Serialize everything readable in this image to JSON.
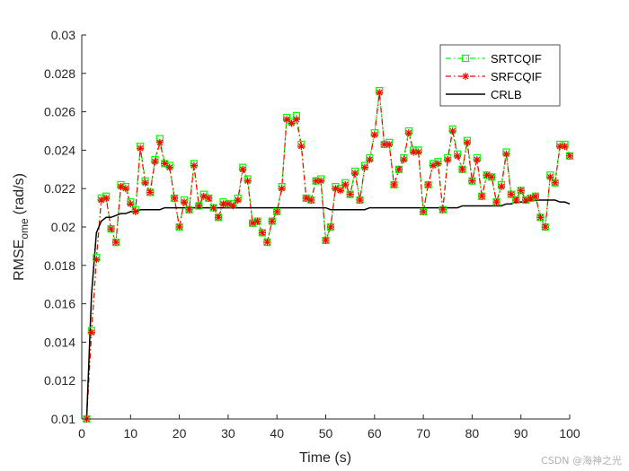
{
  "chart_data": {
    "type": "line",
    "title": "",
    "xlabel": "Time (s)",
    "ylabel_main": "RMSE",
    "ylabel_sub": "ome",
    "ylabel_unit": "(rad/s)",
    "xlim": [
      0,
      100
    ],
    "ylim": [
      0.01,
      0.03
    ],
    "xticks": [
      "0",
      "10",
      "20",
      "30",
      "40",
      "50",
      "60",
      "70",
      "80",
      "90",
      "100"
    ],
    "yticks": [
      "0.01",
      "0.012",
      "0.014",
      "0.016",
      "0.018",
      "0.02",
      "0.022",
      "0.024",
      "0.026",
      "0.028",
      "0.03"
    ],
    "legend_position": "top-right",
    "x": [
      1,
      2,
      3,
      4,
      5,
      6,
      7,
      8,
      9,
      10,
      11,
      12,
      13,
      14,
      15,
      16,
      17,
      18,
      19,
      20,
      21,
      22,
      23,
      24,
      25,
      26,
      27,
      28,
      29,
      30,
      31,
      32,
      33,
      34,
      35,
      36,
      37,
      38,
      39,
      40,
      41,
      42,
      43,
      44,
      45,
      46,
      47,
      48,
      49,
      50,
      51,
      52,
      53,
      54,
      55,
      56,
      57,
      58,
      59,
      60,
      61,
      62,
      63,
      64,
      65,
      66,
      67,
      68,
      69,
      70,
      71,
      72,
      73,
      74,
      75,
      76,
      77,
      78,
      79,
      80,
      81,
      82,
      83,
      84,
      85,
      86,
      87,
      88,
      89,
      90,
      91,
      92,
      93,
      94,
      95,
      96,
      97,
      98,
      99,
      100
    ],
    "series": [
      {
        "name": "SRTCQIF",
        "color": "#00ff00",
        "style": "dash-dot",
        "marker": "square",
        "values": [
          0.01,
          0.0146,
          0.0184,
          0.0215,
          0.0216,
          0.0199,
          0.0192,
          0.0222,
          0.0221,
          0.0213,
          0.0209,
          0.0242,
          0.0224,
          0.0218,
          0.0235,
          0.0246,
          0.0233,
          0.0232,
          0.0215,
          0.02,
          0.0214,
          0.0209,
          0.0233,
          0.0211,
          0.0217,
          0.0215,
          0.021,
          0.0205,
          0.0213,
          0.0212,
          0.0212,
          0.0215,
          0.0231,
          0.0225,
          0.0202,
          0.0203,
          0.0197,
          0.0192,
          0.0203,
          0.0208,
          0.0221,
          0.0257,
          0.0255,
          0.0258,
          0.0243,
          0.0215,
          0.0214,
          0.0224,
          0.0225,
          0.0193,
          0.02,
          0.0221,
          0.022,
          0.0223,
          0.0217,
          0.0229,
          0.0214,
          0.0232,
          0.0236,
          0.0249,
          0.0271,
          0.0243,
          0.0244,
          0.0222,
          0.023,
          0.0236,
          0.025,
          0.024,
          0.024,
          0.0208,
          0.0222,
          0.0233,
          0.0234,
          0.0209,
          0.0236,
          0.0251,
          0.0238,
          0.023,
          0.0245,
          0.0224,
          0.0236,
          0.0216,
          0.0227,
          0.0226,
          0.0213,
          0.0222,
          0.0239,
          0.0217,
          0.0214,
          0.0219,
          0.0214,
          0.0215,
          0.0216,
          0.0205,
          0.02,
          0.0227,
          0.0223,
          0.0243,
          0.0243,
          0.0237
        ]
      },
      {
        "name": "SRFCQIF",
        "color": "#ff0000",
        "style": "dash-dot",
        "marker": "asterisk",
        "values": [
          0.01,
          0.0145,
          0.0183,
          0.0214,
          0.0215,
          0.0199,
          0.0192,
          0.0221,
          0.022,
          0.0212,
          0.0208,
          0.0241,
          0.0223,
          0.0218,
          0.0234,
          0.0244,
          0.0233,
          0.0231,
          0.0215,
          0.02,
          0.0213,
          0.0209,
          0.0232,
          0.0211,
          0.0216,
          0.0215,
          0.021,
          0.0205,
          0.0212,
          0.0212,
          0.0211,
          0.0214,
          0.023,
          0.0224,
          0.0202,
          0.0203,
          0.0197,
          0.0192,
          0.0203,
          0.0208,
          0.022,
          0.0256,
          0.0254,
          0.0256,
          0.0242,
          0.0215,
          0.0214,
          0.0224,
          0.0224,
          0.0193,
          0.02,
          0.022,
          0.0219,
          0.0222,
          0.0217,
          0.0228,
          0.0214,
          0.0231,
          0.0235,
          0.0248,
          0.027,
          0.0243,
          0.0243,
          0.0222,
          0.023,
          0.0235,
          0.0249,
          0.0239,
          0.0239,
          0.0208,
          0.0222,
          0.0232,
          0.0233,
          0.0209,
          0.0235,
          0.025,
          0.0237,
          0.023,
          0.0244,
          0.0224,
          0.0235,
          0.0216,
          0.0227,
          0.0226,
          0.0213,
          0.0221,
          0.0238,
          0.0217,
          0.0214,
          0.0219,
          0.0214,
          0.0215,
          0.0216,
          0.0205,
          0.02,
          0.0226,
          0.0223,
          0.0242,
          0.0242,
          0.0237
        ]
      },
      {
        "name": "CRLB",
        "color": "#000000",
        "style": "solid",
        "marker": "none",
        "values": [
          0.01,
          0.0165,
          0.0197,
          0.0203,
          0.0205,
          0.0205,
          0.0206,
          0.0207,
          0.0207,
          0.0208,
          0.0208,
          0.0209,
          0.0209,
          0.0209,
          0.0209,
          0.0209,
          0.021,
          0.021,
          0.021,
          0.021,
          0.021,
          0.021,
          0.021,
          0.021,
          0.021,
          0.021,
          0.021,
          0.021,
          0.021,
          0.021,
          0.021,
          0.021,
          0.021,
          0.021,
          0.021,
          0.021,
          0.021,
          0.021,
          0.021,
          0.021,
          0.021,
          0.021,
          0.021,
          0.021,
          0.021,
          0.021,
          0.021,
          0.021,
          0.021,
          0.021,
          0.0209,
          0.0209,
          0.0209,
          0.0209,
          0.0209,
          0.0209,
          0.0209,
          0.0209,
          0.021,
          0.021,
          0.021,
          0.021,
          0.021,
          0.021,
          0.021,
          0.021,
          0.021,
          0.021,
          0.021,
          0.021,
          0.021,
          0.021,
          0.021,
          0.021,
          0.021,
          0.021,
          0.021,
          0.0211,
          0.0211,
          0.0211,
          0.0211,
          0.0211,
          0.0211,
          0.0211,
          0.0211,
          0.0211,
          0.0212,
          0.0212,
          0.0213,
          0.0213,
          0.0213,
          0.0214,
          0.0214,
          0.0214,
          0.0214,
          0.0214,
          0.0214,
          0.0213,
          0.0213,
          0.0212
        ]
      }
    ]
  },
  "watermark": "CSDN @海神之光"
}
